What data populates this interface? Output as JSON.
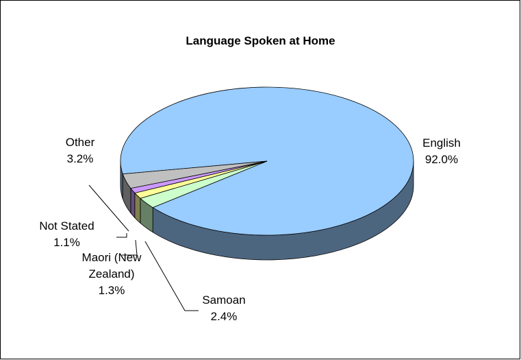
{
  "chart_data": {
    "type": "pie",
    "title": "Language Spoken at Home",
    "categories": [
      "English",
      "Samoan",
      "Maori (New Zealand)",
      "Not Stated",
      "Other"
    ],
    "values": [
      92.0,
      2.4,
      1.3,
      1.1,
      3.2
    ],
    "value_labels": [
      "92.0%",
      "2.4%",
      "1.3%",
      "1.1%",
      "3.2%"
    ],
    "colors": [
      "#99ccff",
      "#ccffcc",
      "#ffff99",
      "#cc99ff",
      "#c0c0c0"
    ]
  }
}
